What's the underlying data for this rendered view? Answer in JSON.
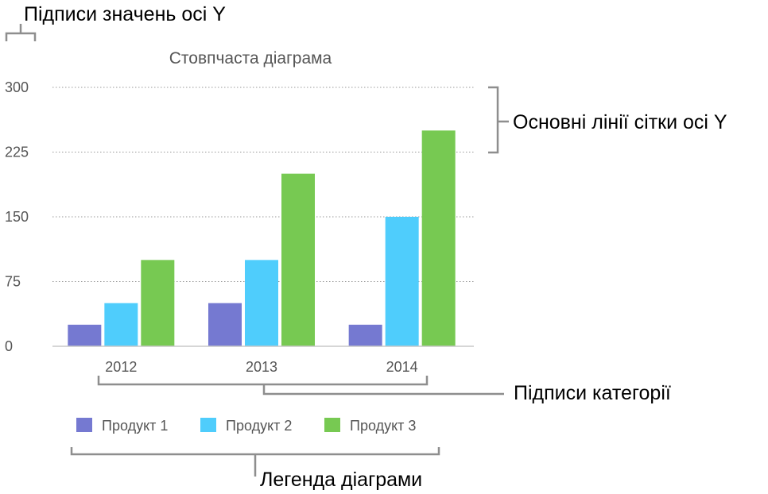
{
  "chart_data": {
    "type": "bar",
    "title": "Стовпчаста діаграма",
    "categories": [
      "2012",
      "2013",
      "2014"
    ],
    "series": [
      {
        "name": "Продукт 1",
        "color": "#7579d1",
        "values": [
          25,
          50,
          25
        ]
      },
      {
        "name": "Продукт 2",
        "color": "#4fcdfc",
        "values": [
          50,
          100,
          150
        ]
      },
      {
        "name": "Продукт 3",
        "color": "#77c952",
        "values": [
          100,
          200,
          250
        ]
      }
    ],
    "ylim": [
      0,
      300
    ],
    "yticks": [
      "0",
      "75",
      "150",
      "225",
      "300"
    ],
    "grid": true,
    "legend_position": "bottom"
  },
  "callouts": {
    "y_value_labels": "Підписи значень осі Y",
    "major_gridlines": "Основні лінії сітки осі Y",
    "category_labels": "Підписи категорії",
    "chart_legend": "Легенда діаграми"
  }
}
